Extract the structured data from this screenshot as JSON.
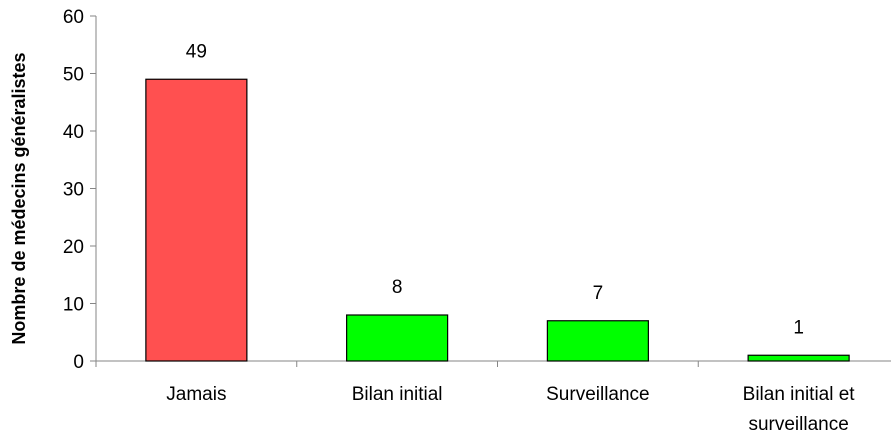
{
  "chart_data": {
    "type": "bar",
    "title": "",
    "xlabel": "",
    "ylabel": "Nombre de médecins généralistes",
    "ylim": [
      0,
      60
    ],
    "yticks": [
      0,
      10,
      20,
      30,
      40,
      50,
      60
    ],
    "grid": false,
    "legend": "none",
    "categories": [
      [
        "Jamais"
      ],
      [
        "Bilan initial"
      ],
      [
        "Surveillance"
      ],
      [
        "Bilan initial et",
        "surveillance"
      ]
    ],
    "values": [
      49,
      8,
      7,
      1
    ],
    "data_labels": [
      "49",
      "8",
      "7",
      "1"
    ],
    "colors": [
      "#FF5050",
      "#00FF00",
      "#00FF00",
      "#00FF00"
    ],
    "border_color": "#000000",
    "axis_color": "#868686"
  }
}
